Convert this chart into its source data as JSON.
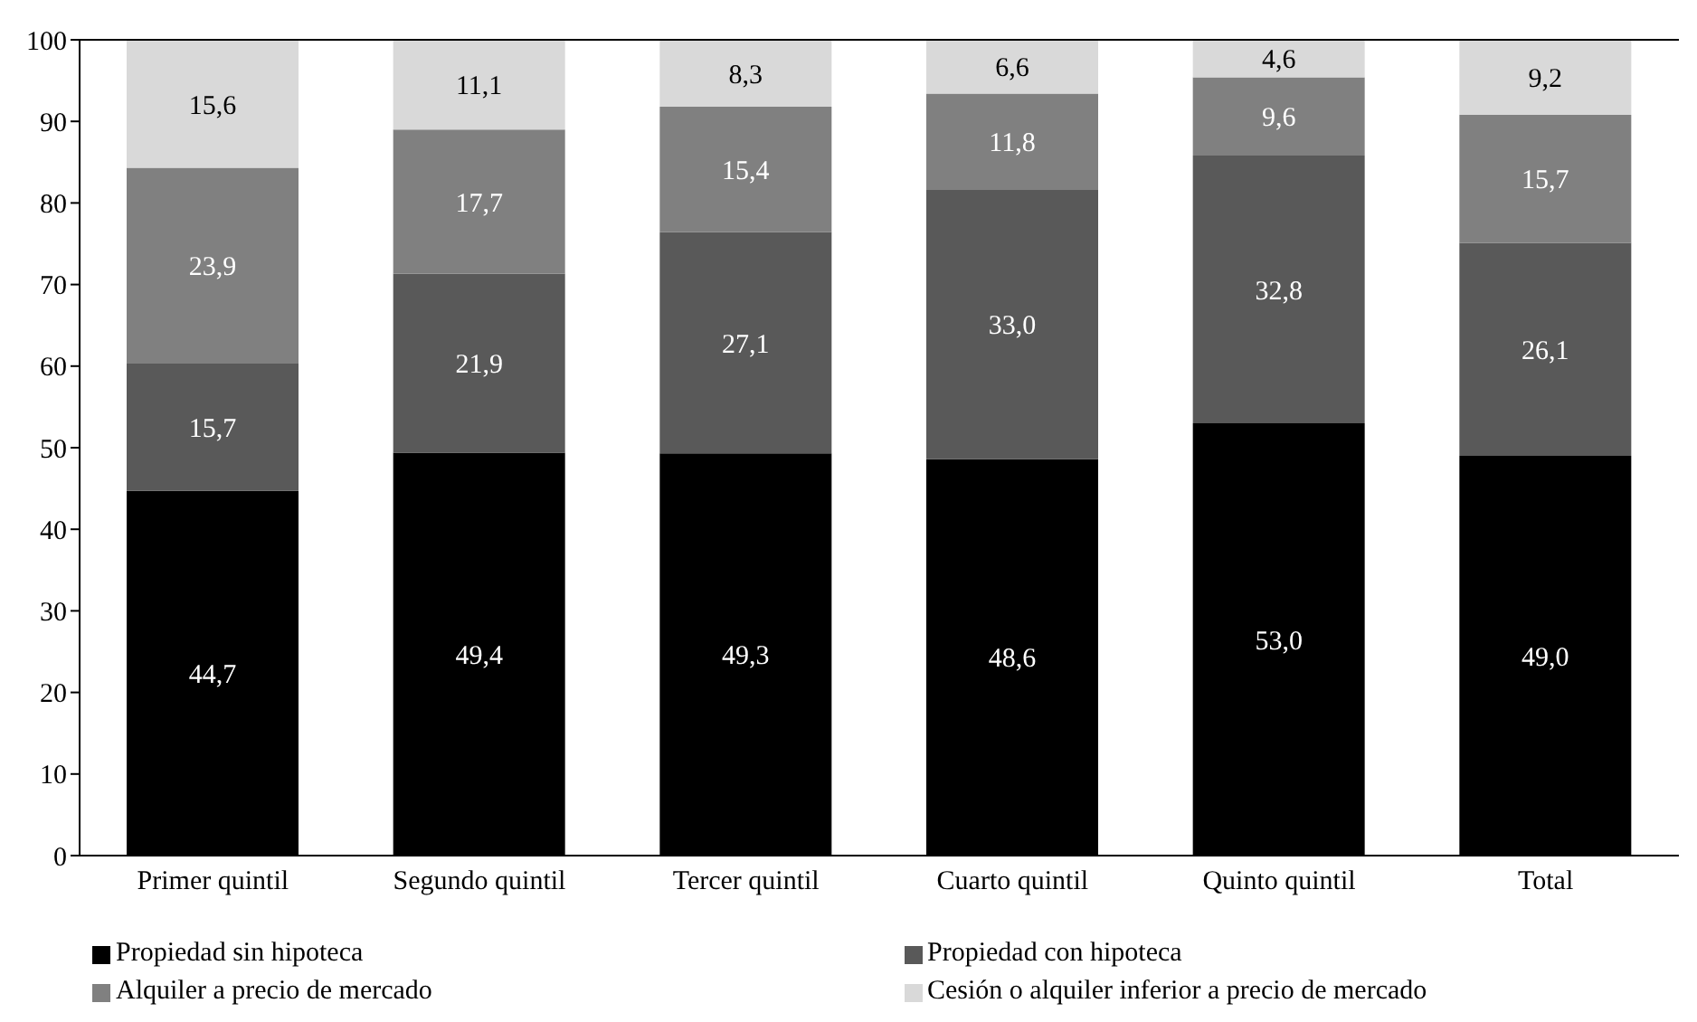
{
  "chart_data": {
    "type": "bar",
    "stacked": true,
    "categories": [
      "Primer quintil",
      "Segundo quintil",
      "Tercer quintil",
      "Cuarto quintil",
      "Quinto quintil",
      "Total"
    ],
    "series": [
      {
        "name": "Propiedad sin hipoteca",
        "color": "#000000",
        "values": [
          44.7,
          49.4,
          49.3,
          48.6,
          53.0,
          49.0
        ],
        "value_labels": [
          "44,7",
          "49,4",
          "49,3",
          "48,6",
          "53,0",
          "49,0"
        ]
      },
      {
        "name": "Propiedad con hipoteca",
        "color": "#595959",
        "values": [
          15.7,
          21.9,
          27.1,
          33.0,
          32.8,
          26.1
        ],
        "value_labels": [
          "15,7",
          "21,9",
          "27,1",
          "33,0",
          "32,8",
          "26,1"
        ]
      },
      {
        "name": "Alquiler a precio de mercado",
        "color": "#808080",
        "values": [
          23.9,
          17.7,
          15.4,
          11.8,
          9.6,
          15.7
        ],
        "value_labels": [
          "23,9",
          "17,7",
          "15,4",
          "11,8",
          "9,6",
          "15,7"
        ]
      },
      {
        "name": "Cesión o alquiler inferior a precio de mercado",
        "color": "#d9d9d9",
        "values": [
          15.6,
          11.1,
          8.3,
          6.6,
          4.6,
          9.2
        ],
        "value_labels": [
          "15,6",
          "11,1",
          "8,3",
          "6,6",
          "4,6",
          "9,2"
        ]
      }
    ],
    "ylim": [
      0,
      100
    ],
    "yticks": [
      0,
      10,
      20,
      30,
      40,
      50,
      60,
      70,
      80,
      90,
      100
    ],
    "grid": false,
    "legend": "bottom"
  }
}
